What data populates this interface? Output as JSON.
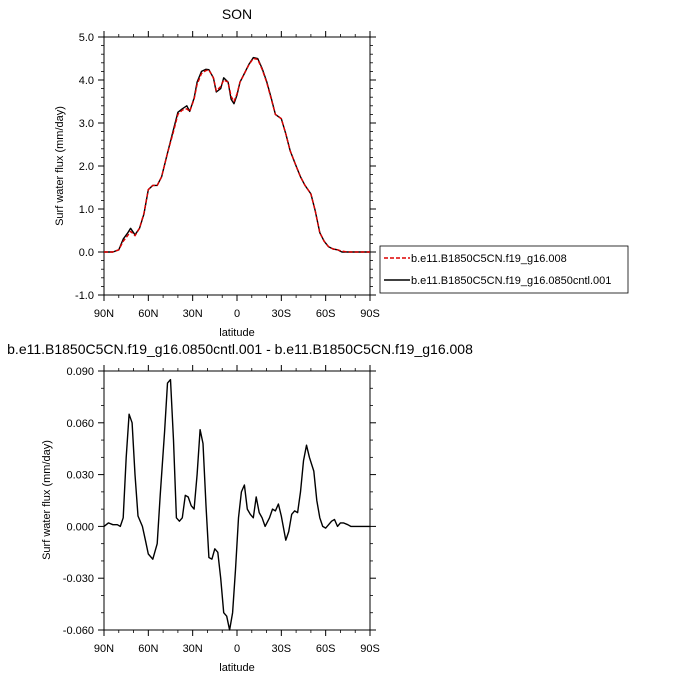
{
  "chart_data": [
    {
      "type": "line",
      "title": "SON",
      "xlabel": "latitude",
      "ylabel": "Surf water flux (mm/day)",
      "xlim": [
        90,
        -90
      ],
      "ylim": [
        -1.0,
        5.0
      ],
      "x_ticks": [
        {
          "value": 90,
          "label": "90N"
        },
        {
          "value": 60,
          "label": "60N"
        },
        {
          "value": 30,
          "label": "30N"
        },
        {
          "value": 0,
          "label": "0"
        },
        {
          "value": -30,
          "label": "30S"
        },
        {
          "value": -60,
          "label": "60S"
        },
        {
          "value": -90,
          "label": "90S"
        }
      ],
      "y_ticks": [
        {
          "value": -1.0,
          "label": "-1.0"
        },
        {
          "value": 0.0,
          "label": "0.0"
        },
        {
          "value": 1.0,
          "label": "1.0"
        },
        {
          "value": 2.0,
          "label": "2.0"
        },
        {
          "value": 3.0,
          "label": "3.0"
        },
        {
          "value": 4.0,
          "label": "4.0"
        },
        {
          "value": 5.0,
          "label": "5.0"
        }
      ],
      "legend_position": "right",
      "series": [
        {
          "name": "b.e11.B1850C5CN.f19_g16.008",
          "color": "#dd0000",
          "dash": "dashed",
          "x": [
            90,
            84,
            80,
            77,
            74,
            72,
            69,
            66,
            63,
            60,
            57,
            54,
            51,
            47,
            43,
            40,
            37,
            34,
            32,
            29,
            27,
            24,
            21,
            19,
            16,
            14,
            11,
            9,
            6,
            4,
            2,
            0,
            -2,
            -5,
            -8,
            -11,
            -14,
            -17,
            -20,
            -23,
            -26,
            -30,
            -33,
            -36,
            -40,
            -43,
            -46,
            -50,
            -53,
            -56,
            -59,
            -62,
            -65,
            -68,
            -71,
            -75,
            -79,
            -83,
            -86,
            -90
          ],
          "y": [
            0.0,
            0.0,
            0.05,
            0.25,
            0.38,
            0.48,
            0.38,
            0.55,
            0.9,
            1.45,
            1.55,
            1.55,
            1.75,
            2.3,
            2.8,
            3.2,
            3.3,
            3.33,
            3.27,
            3.55,
            3.9,
            4.15,
            4.22,
            4.23,
            4.05,
            3.75,
            3.85,
            4.0,
            3.95,
            3.62,
            3.5,
            3.68,
            3.95,
            4.15,
            4.35,
            4.5,
            4.48,
            4.25,
            3.95,
            3.58,
            3.2,
            3.1,
            2.75,
            2.35,
            2.0,
            1.75,
            1.55,
            1.35,
            0.95,
            0.45,
            0.25,
            0.12,
            0.07,
            0.05,
            0.02,
            0.0,
            0.0,
            0.0,
            0.0,
            0.0
          ]
        },
        {
          "name": "b.e11.B1850C5CN.f19_g16.0850cntl.001",
          "color": "#000000",
          "dash": "solid",
          "x": [
            90,
            84,
            80,
            77,
            74,
            72,
            69,
            66,
            63,
            60,
            57,
            54,
            51,
            47,
            43,
            40,
            37,
            34,
            32,
            29,
            27,
            24,
            21,
            19,
            16,
            14,
            11,
            9,
            6,
            4,
            2,
            0,
            -2,
            -5,
            -8,
            -11,
            -14,
            -17,
            -20,
            -23,
            -26,
            -30,
            -33,
            -36,
            -40,
            -43,
            -46,
            -50,
            -53,
            -56,
            -59,
            -62,
            -65,
            -68,
            -71,
            -75,
            -79,
            -83,
            -86,
            -90
          ],
          "y": [
            0.0,
            0.0,
            0.05,
            0.3,
            0.44,
            0.55,
            0.4,
            0.55,
            0.88,
            1.45,
            1.55,
            1.55,
            1.75,
            2.3,
            2.85,
            3.25,
            3.33,
            3.4,
            3.27,
            3.58,
            3.95,
            4.2,
            4.25,
            4.24,
            4.05,
            3.72,
            3.8,
            4.05,
            3.95,
            3.55,
            3.45,
            3.65,
            3.95,
            4.15,
            4.36,
            4.52,
            4.5,
            4.27,
            3.97,
            3.6,
            3.2,
            3.1,
            2.75,
            2.35,
            2.0,
            1.75,
            1.55,
            1.35,
            0.95,
            0.45,
            0.25,
            0.12,
            0.07,
            0.05,
            0.0,
            0.0,
            0.0,
            0.0,
            0.0,
            0.0
          ]
        }
      ]
    },
    {
      "type": "line",
      "title": "b.e11.B1850C5CN.f19_g16.0850cntl.001 - b.e11.B1850C5CN.f19_g16.008",
      "xlabel": "latitude",
      "ylabel": "Surf water flux (mm/day)",
      "xlim": [
        90,
        -90
      ],
      "ylim": [
        -0.06,
        0.09
      ],
      "x_ticks": [
        {
          "value": 90,
          "label": "90N"
        },
        {
          "value": 60,
          "label": "60N"
        },
        {
          "value": 30,
          "label": "30N"
        },
        {
          "value": 0,
          "label": "0"
        },
        {
          "value": -30,
          "label": "30S"
        },
        {
          "value": -60,
          "label": "60S"
        },
        {
          "value": -90,
          "label": "90S"
        }
      ],
      "y_ticks": [
        {
          "value": -0.06,
          "label": "-0.060"
        },
        {
          "value": -0.03,
          "label": "-0.030"
        },
        {
          "value": 0.0,
          "label": "0.000"
        },
        {
          "value": 0.03,
          "label": "0.030"
        },
        {
          "value": 0.06,
          "label": "0.060"
        },
        {
          "value": 0.09,
          "label": "0.090"
        }
      ],
      "series": [
        {
          "color": "#000000",
          "x": [
            90,
            87,
            84,
            81,
            79,
            77,
            75,
            73,
            71,
            69,
            67,
            64,
            62,
            60,
            57,
            54,
            52,
            49,
            47,
            45,
            43,
            41,
            39,
            37,
            35,
            33,
            31,
            29,
            27,
            25,
            23,
            21,
            19,
            17,
            15,
            13,
            11,
            9,
            7,
            5,
            3,
            1,
            -1,
            -3,
            -5,
            -7,
            -9,
            -11,
            -13,
            -15,
            -17,
            -19,
            -22,
            -24,
            -26,
            -28,
            -30,
            -33,
            -35,
            -37,
            -39,
            -41,
            -43,
            -45,
            -47,
            -49,
            -52,
            -54,
            -56,
            -58,
            -60,
            -62,
            -64,
            -66,
            -68,
            -70,
            -72,
            -75,
            -77,
            -80,
            -83,
            -86,
            -90
          ],
          "y": [
            0.0,
            0.002,
            0.001,
            0.001,
            0.0,
            0.005,
            0.04,
            0.065,
            0.06,
            0.03,
            0.006,
            0.0,
            -0.008,
            -0.016,
            -0.019,
            -0.01,
            0.018,
            0.055,
            0.083,
            0.085,
            0.05,
            0.005,
            0.003,
            0.005,
            0.018,
            0.017,
            0.012,
            0.01,
            0.03,
            0.056,
            0.048,
            0.012,
            -0.018,
            -0.019,
            -0.013,
            -0.015,
            -0.03,
            -0.05,
            -0.052,
            -0.06,
            -0.05,
            -0.025,
            0.005,
            0.02,
            0.024,
            0.01,
            0.007,
            0.005,
            0.017,
            0.008,
            0.005,
            0.0,
            0.005,
            0.01,
            0.009,
            0.013,
            0.006,
            -0.008,
            -0.003,
            0.007,
            0.009,
            0.008,
            0.02,
            0.038,
            0.047,
            0.04,
            0.032,
            0.015,
            0.005,
            0.0,
            -0.001,
            0.001,
            0.003,
            0.004,
            0.0,
            0.002,
            0.002,
            0.001,
            0.0,
            0.0,
            0.0,
            0.0,
            0.0
          ]
        }
      ]
    }
  ]
}
